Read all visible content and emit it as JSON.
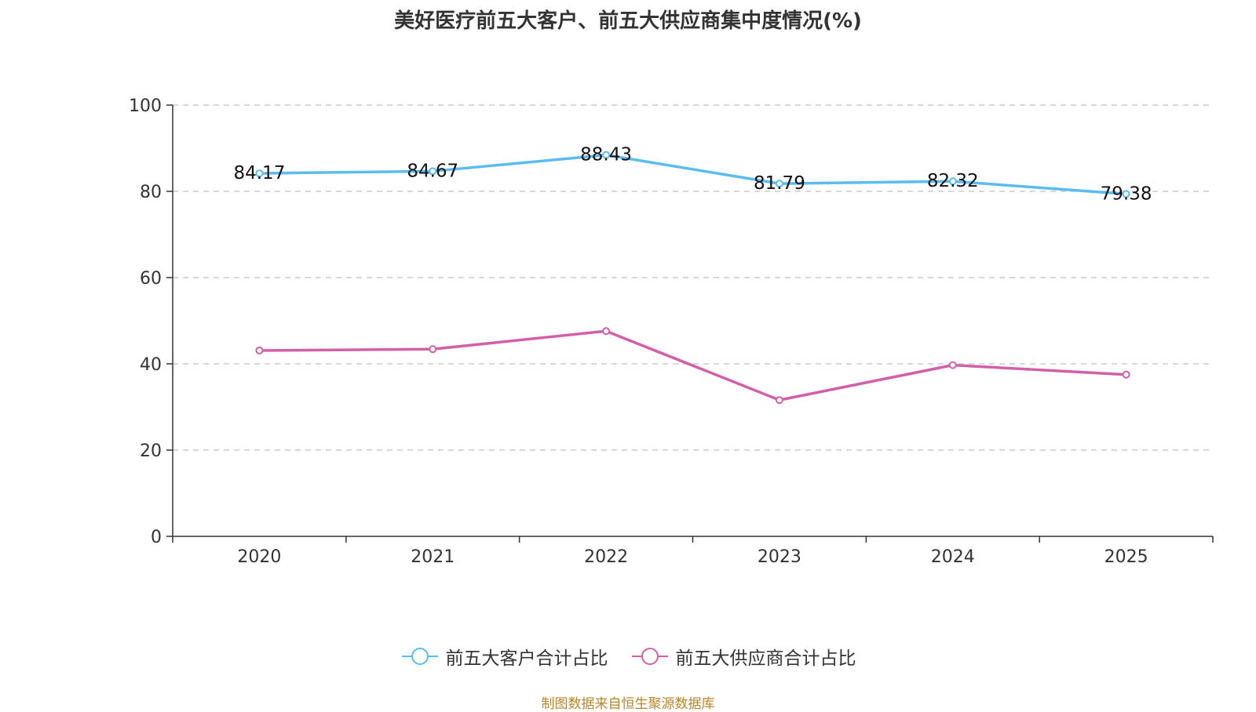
{
  "chart_data": {
    "type": "line",
    "title": "美好医疗前五大客户、前五大供应商集中度情况(%)",
    "categories": [
      "2020",
      "2021",
      "2022",
      "2023",
      "2024",
      "2025"
    ],
    "series": [
      {
        "name": "前五大客户合计占比",
        "color": "#5bbcf0",
        "values": [
          84.17,
          84.67,
          88.43,
          81.79,
          82.32,
          79.38
        ],
        "labels": [
          "84.17",
          "84.67",
          "88.43",
          "81.79",
          "82.32",
          "79.38"
        ],
        "show_labels": true
      },
      {
        "name": "前五大供应商合计占比",
        "color": "#d160a8",
        "values": [
          43.1,
          43.4,
          47.6,
          31.6,
          39.7,
          37.5
        ],
        "show_labels": false
      }
    ],
    "ylim": [
      0,
      100
    ],
    "yticks": [
      0,
      20,
      40,
      60,
      80,
      100
    ],
    "ytick_labels": [
      "0",
      "20",
      "40",
      "60",
      "80",
      "100"
    ],
    "grid": true,
    "legend_position": "bottom-center",
    "xlabel": "",
    "ylabel": ""
  },
  "source": "制图数据来自恒生聚源数据库"
}
